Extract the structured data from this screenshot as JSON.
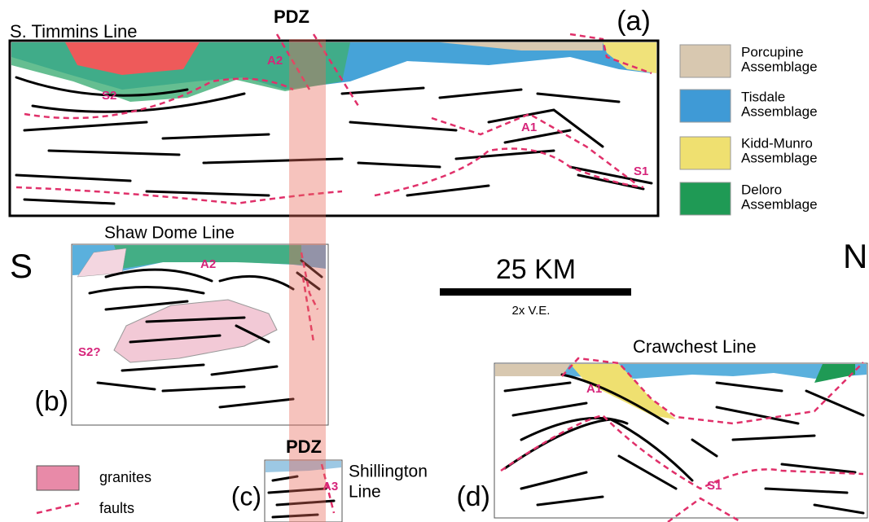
{
  "panels": [
    {
      "tag": "(a)",
      "title": "S. Timmins Line",
      "labels": [
        "A2",
        "S2",
        "A1",
        "S1"
      ]
    },
    {
      "tag": "(b)",
      "title": "Shaw Dome Line",
      "labels": [
        "A2",
        "S2?"
      ]
    },
    {
      "tag": "(c)",
      "title": [
        "Shillington",
        "Line"
      ],
      "labels": [
        "A3"
      ]
    },
    {
      "tag": "(d)",
      "title": "Crawchest Line",
      "labels": [
        "A1",
        "S1"
      ]
    }
  ],
  "pdz": [
    "PDZ",
    "PDZ"
  ],
  "legend": [
    [
      "Porcupine",
      "Assemblage"
    ],
    [
      "Tisdale",
      "Assemblage"
    ],
    [
      "Kidd-Munro",
      "Assemblage"
    ],
    [
      "Deloro",
      "Assemblage"
    ]
  ],
  "directions": [
    "S",
    "N"
  ],
  "scale": {
    "label": "25 KM",
    "note": "2x V.E."
  },
  "key": [
    "granites",
    "faults"
  ]
}
